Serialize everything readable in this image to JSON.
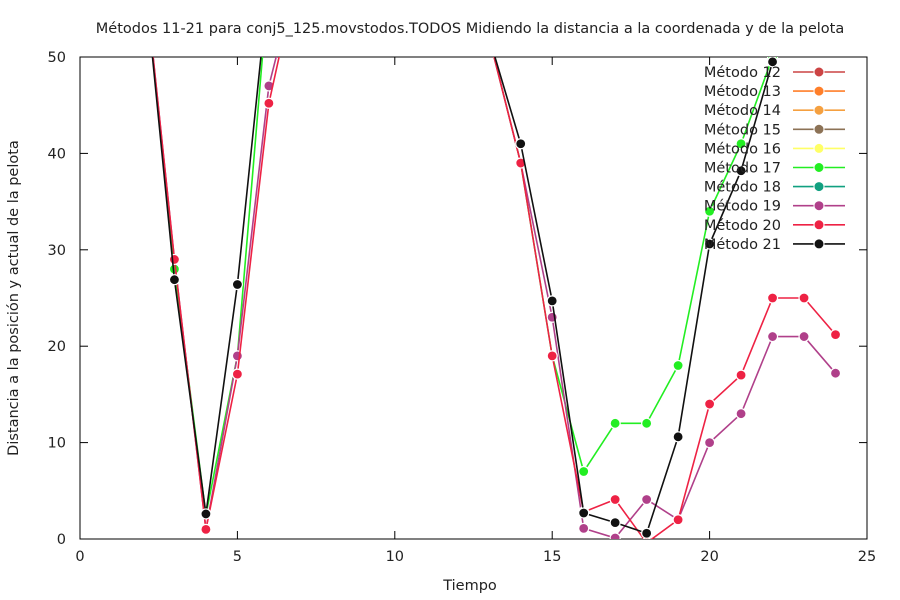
{
  "chart_data": {
    "type": "line",
    "title": "Métodos 11-21 para conj5_125.movstodos.TODOS Midiendo la distancia a la coordenada y de la pelota",
    "xlabel": "Tiempo",
    "ylabel": "Distancia a la posición y actual de la pelota",
    "xlim": [
      0,
      25
    ],
    "ylim": [
      0,
      50
    ],
    "xticks": [
      "0",
      "5",
      "10",
      "15",
      "20",
      "25"
    ],
    "yticks": [
      "0",
      "10",
      "20",
      "30",
      "40",
      "50"
    ],
    "grid": false,
    "legend_position": "top-right",
    "series": [
      {
        "name": "Método 12",
        "color": "#cc4444",
        "x": [],
        "y": []
      },
      {
        "name": "Método 13",
        "color": "#ff7f2a",
        "x": [],
        "y": []
      },
      {
        "name": "Método 14",
        "color": "#f5a040",
        "x": [],
        "y": []
      },
      {
        "name": "Método 15",
        "color": "#8c7256",
        "x": [],
        "y": []
      },
      {
        "name": "Método 16",
        "color": "#ffff66",
        "x": [],
        "y": []
      },
      {
        "name": "Método 17",
        "color": "#22ee22",
        "x": [
          2,
          3,
          4,
          5,
          6,
          13,
          14,
          15,
          16,
          17,
          18,
          19,
          20,
          21,
          22,
          23
        ],
        "y": [
          60,
          28,
          2.5,
          19,
          58,
          52,
          39,
          19,
          7,
          12,
          12,
          18,
          34,
          41,
          50,
          57
        ]
      },
      {
        "name": "Método 18",
        "color": "#11a080",
        "x": [],
        "y": []
      },
      {
        "name": "Método 19",
        "color": "#b0408a",
        "x": [
          2,
          3,
          4,
          5,
          6,
          7,
          13,
          14,
          15,
          16,
          17,
          18,
          19,
          20,
          21,
          22,
          23,
          24
        ],
        "y": [
          60,
          29,
          1,
          19,
          47,
          60,
          52,
          39,
          23,
          1.1,
          0.1,
          4.1,
          2,
          10,
          13,
          21,
          21,
          17.2
        ]
      },
      {
        "name": "Método 20",
        "color": "#ee2244",
        "x": [
          2,
          3,
          4,
          5,
          6,
          7,
          13,
          14,
          15,
          16,
          17,
          18,
          19,
          20,
          21,
          22,
          23,
          24
        ],
        "y": [
          60,
          29,
          1,
          17.1,
          45.2,
          60,
          52,
          39,
          19,
          2.8,
          4.1,
          -0.4,
          2,
          14,
          17,
          25,
          25,
          21.2
        ]
      },
      {
        "name": "Método 21",
        "color": "#111111",
        "x": [
          2,
          3,
          4,
          5,
          6,
          13,
          14,
          15,
          16,
          17,
          18,
          19,
          20,
          21,
          22,
          23
        ],
        "y": [
          60,
          26.9,
          2.6,
          26.4,
          58,
          52,
          41,
          24.7,
          2.7,
          1.7,
          0.6,
          10.6,
          30.6,
          38.2,
          49.5,
          57
        ]
      }
    ]
  }
}
